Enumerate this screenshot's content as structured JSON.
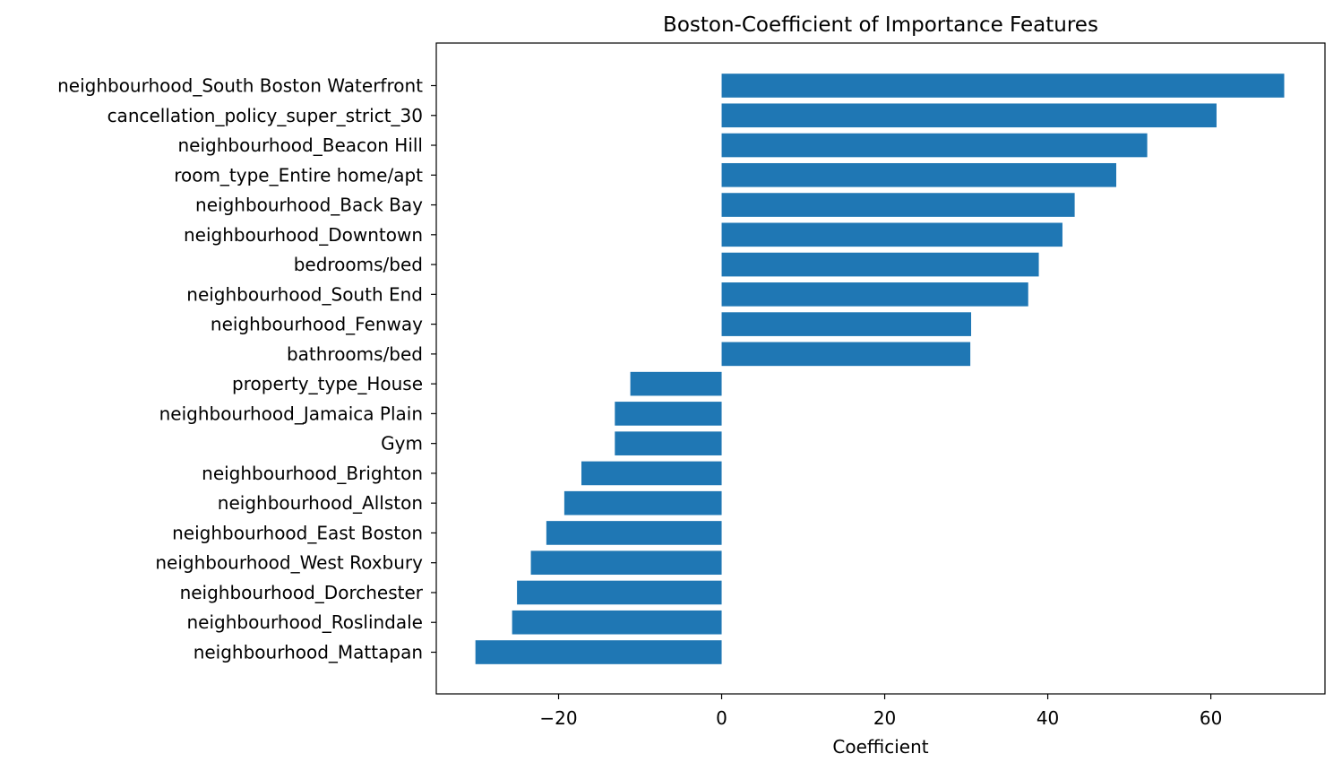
{
  "chart_data": {
    "type": "bar",
    "orientation": "horizontal",
    "title": "Boston-Coefficient of Importance Features",
    "xlabel": "Coefficient",
    "ylabel": "",
    "categories": [
      "neighbourhood_South Boston Waterfront",
      "cancellation_policy_super_strict_30",
      "neighbourhood_Beacon Hill",
      "room_type_Entire home/apt",
      "neighbourhood_Back Bay",
      "neighbourhood_Downtown",
      "bedrooms/bed",
      "neighbourhood_South End",
      "neighbourhood_Fenway",
      "bathrooms/bed",
      "property_type_House",
      "neighbourhood_Jamaica Plain",
      "Gym",
      "neighbourhood_Brighton",
      "neighbourhood_Allston",
      "neighbourhood_East Boston",
      "neighbourhood_West Roxbury",
      "neighbourhood_Dorchester",
      "neighbourhood_Roslindale",
      "neighbourhood_Mattapan"
    ],
    "values": [
      69.0,
      60.7,
      52.2,
      48.4,
      43.3,
      41.8,
      38.9,
      37.6,
      30.6,
      30.5,
      -11.2,
      -13.1,
      -13.1,
      -17.2,
      -19.3,
      -21.5,
      -23.4,
      -25.1,
      -25.7,
      -30.2
    ],
    "xlim": [
      -35,
      74
    ],
    "xticks": [
      -20,
      0,
      20,
      40,
      60
    ],
    "xtick_labels": [
      "−20",
      "0",
      "20",
      "40",
      "60"
    ],
    "bar_color": "#1f77b4",
    "grid": false,
    "legend": "none"
  }
}
